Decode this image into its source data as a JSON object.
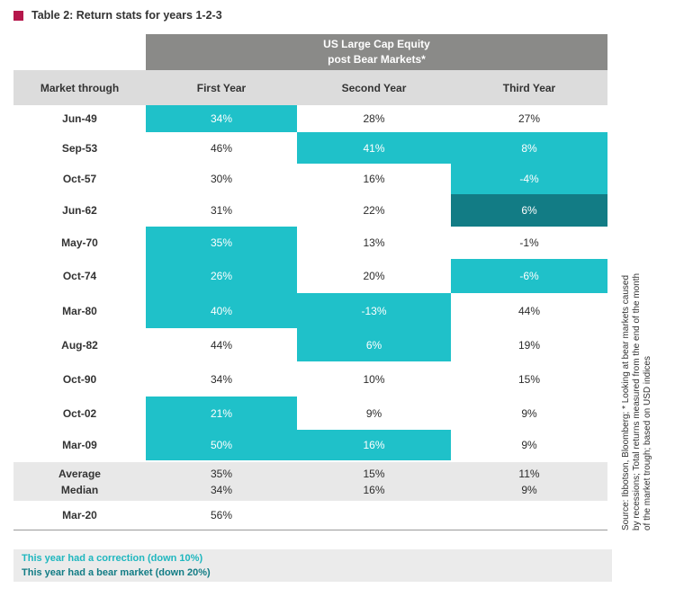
{
  "title": "Table 2: Return stats for years 1-2-3",
  "group_header": {
    "line1": "US Large Cap Equity",
    "line2": "post Bear Markets*"
  },
  "columns": [
    "Market through",
    "First Year",
    "Second Year",
    "Third Year"
  ],
  "rows": [
    {
      "label": "Jun-49",
      "y1": "34%",
      "y2": "28%",
      "y3": "27%",
      "h": 1,
      "s": [
        "corr",
        "",
        ""
      ]
    },
    {
      "label": "Sep-53",
      "y1": "46%",
      "y2": "41%",
      "y3": "8%",
      "s": [
        "",
        "corr",
        "corr"
      ]
    },
    {
      "label": "Oct-57",
      "y1": "30%",
      "y2": "16%",
      "y3": "-4%",
      "s": [
        "",
        "",
        "corr"
      ]
    },
    {
      "label": "Jun-62",
      "y1": "31%",
      "y2": "22%",
      "y3": "6%",
      "s": [
        "",
        "",
        "bear"
      ]
    },
    {
      "label": "May-70",
      "y1": "35%",
      "y2": "13%",
      "y3": "-1%",
      "s": [
        "corr",
        "",
        ""
      ]
    },
    {
      "label": "Oct-74",
      "y1": "26%",
      "y2": "20%",
      "y3": "-6%",
      "s": [
        "corr",
        "",
        "corr"
      ]
    },
    {
      "label": "Mar-80",
      "y1": "40%",
      "y2": "-13%",
      "y3": "44%",
      "s": [
        "corr",
        "corr",
        ""
      ]
    },
    {
      "label": "Aug-82",
      "y1": "44%",
      "y2": "6%",
      "y3": "19%",
      "s": [
        "",
        "corr",
        ""
      ]
    },
    {
      "label": "Oct-90",
      "y1": "34%",
      "y2": "10%",
      "y3": "15%",
      "s": [
        "",
        "",
        ""
      ]
    },
    {
      "label": "Oct-02",
      "y1": "21%",
      "y2": "9%",
      "y3": "9%",
      "s": [
        "corr",
        "",
        ""
      ]
    },
    {
      "label": "Mar-09",
      "y1": "50%",
      "y2": "16%",
      "y3": "9%",
      "s": [
        "corr",
        "corr",
        ""
      ]
    }
  ],
  "stats": {
    "average_label": "Average",
    "median_label": "Median",
    "average": [
      "35%",
      "15%",
      "11%"
    ],
    "median": [
      "34%",
      "16%",
      "9%"
    ]
  },
  "last_row": {
    "label": "Mar-20",
    "y1": "56%",
    "y2": "",
    "y3": ""
  },
  "legend": {
    "correction": "This year had a correction (down 10%)",
    "bear": "This year had a bear market (down 20%)"
  },
  "colors": {
    "correction": "#1fc1c9",
    "bear": "#127c85",
    "header": "#8a8a88",
    "accent": "#b5174b"
  },
  "source": "Source: Ibbotson, Bloomberg; * Looking at bear markets caused by recessions; Total returns measured from the end of the month of the market trough; based on USD indices"
}
